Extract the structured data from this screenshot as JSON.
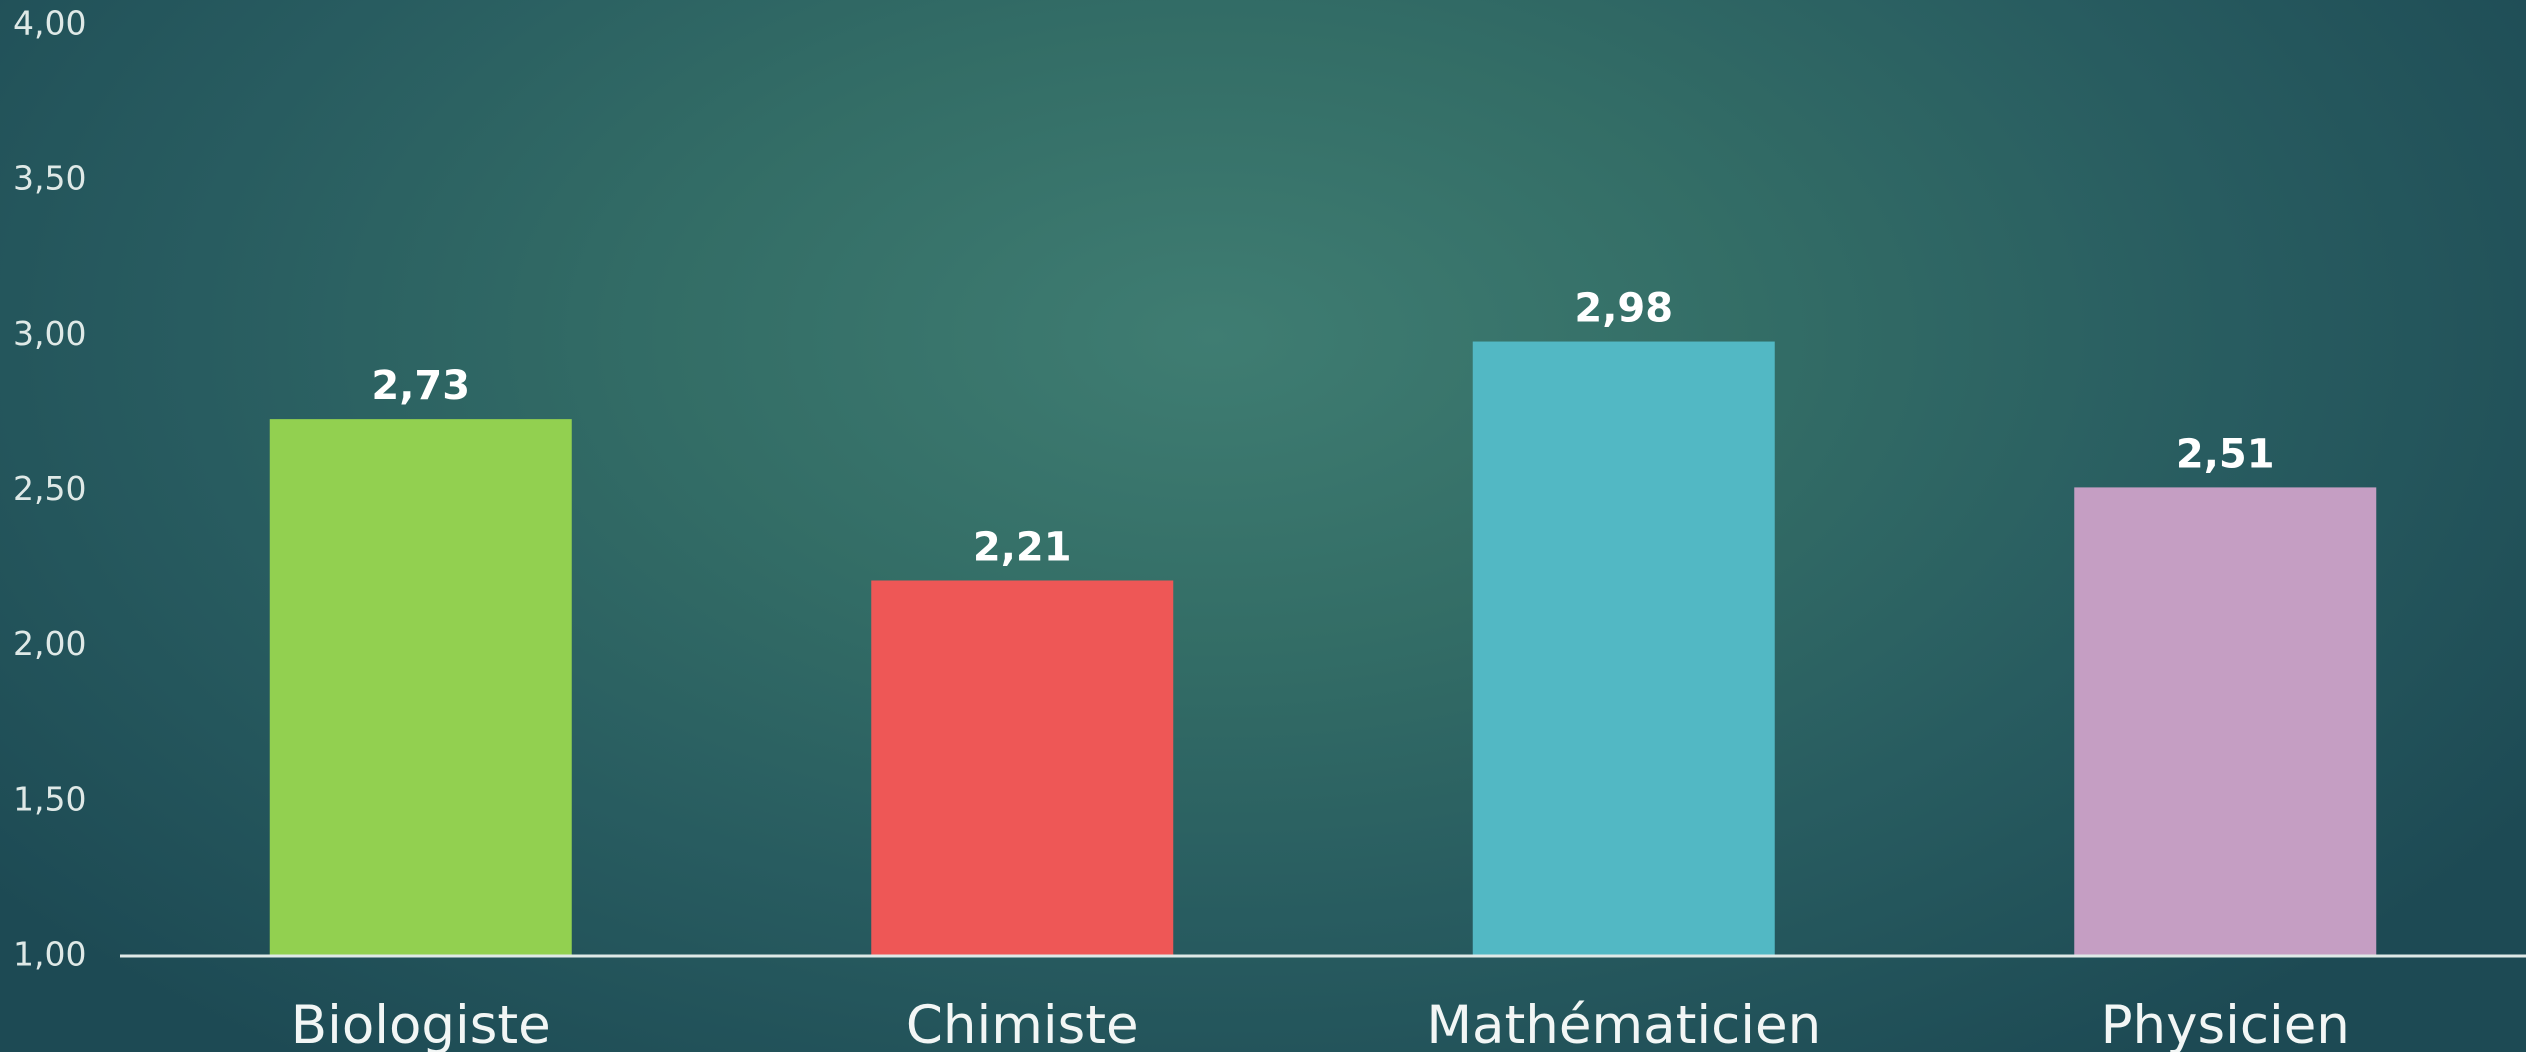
{
  "chart_data": {
    "type": "bar",
    "categories": [
      "Biologiste",
      "Chimiste",
      "Mathématicien",
      "Physicien"
    ],
    "values": [
      2.73,
      2.21,
      2.98,
      2.51
    ],
    "value_labels": [
      "2,73",
      "2,21",
      "2,98",
      "2,51"
    ],
    "colors": [
      "#92d050",
      "#ee5756",
      "#52b8c4",
      "#c59ec3"
    ],
    "ylim": [
      1.0,
      4.0
    ],
    "yticks": [
      1.0,
      1.5,
      2.0,
      2.5,
      3.0,
      3.5,
      4.0
    ],
    "ytick_labels": [
      "1,00",
      "1,50",
      "2,00",
      "2,50",
      "3,00",
      "3,50",
      "4,00"
    ],
    "title": "",
    "xlabel": "",
    "ylabel": "",
    "grid": false,
    "legend": "none"
  }
}
